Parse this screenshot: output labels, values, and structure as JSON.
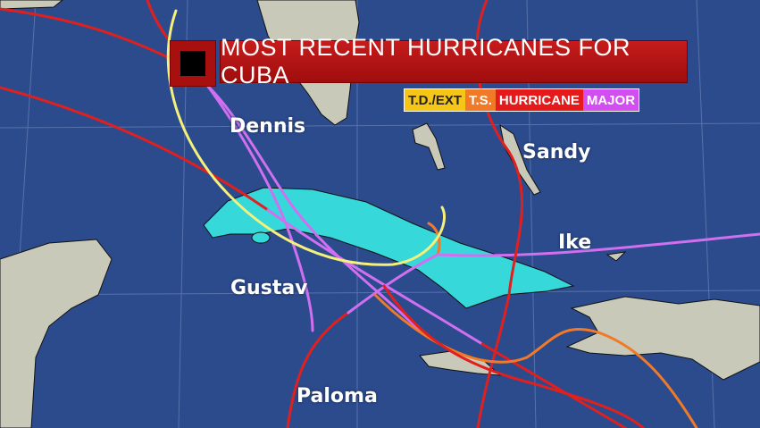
{
  "title": "MOST RECENT HURRICANES FOR CUBA",
  "legend": [
    {
      "label": "T.D./EXT",
      "color": "#f5c518",
      "text_color": "#222"
    },
    {
      "label": "T.S.",
      "color": "#f07a28",
      "text_color": "#fff"
    },
    {
      "label": "HURRICANE",
      "color": "#e51a1a",
      "text_color": "#fff"
    },
    {
      "label": "MAJOR",
      "color": "#d24ef0",
      "text_color": "#fff"
    }
  ],
  "storm_labels": [
    "Dennis",
    "Gustav",
    "Paloma",
    "Sandy",
    "Ike"
  ],
  "colors": {
    "ocean": "#2c4b8d",
    "land": "#c9c9b9",
    "cuba": "#36d8da",
    "td": "#f5f07a",
    "ts": "#f07a28",
    "hurricane": "#e0201e",
    "major": "#d070f0"
  }
}
